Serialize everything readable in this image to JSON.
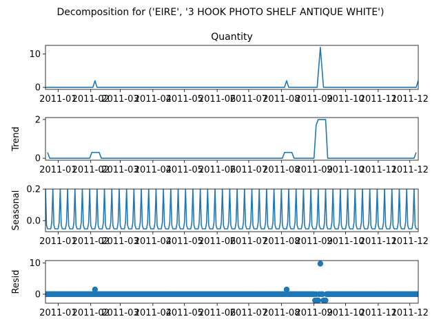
{
  "figure": {
    "suptitle": "Decomposition for ('EIRE', '3 HOOK PHOTO SHELF ANTIQUE WHITE')",
    "colors": {
      "series": "#1f77b4",
      "axes": "#000000",
      "background": "#ffffff"
    }
  },
  "chart_data": [
    {
      "type": "line",
      "title": "Quantity",
      "ylabel": "",
      "x_range": [
        "2010-12-20",
        "2011-12-09"
      ],
      "ylim": [
        -0.6,
        12.6
      ],
      "y_ticks": [
        0,
        10
      ],
      "y_tick_labels": [
        "0",
        "10"
      ],
      "x_tick_labels": [
        "2011-01",
        "2011-02",
        "2011-03",
        "2011-04",
        "2011-05",
        "2011-06",
        "2011-07",
        "2011-08",
        "2011-09",
        "2011-10",
        "2011-11",
        "2011-12"
      ],
      "x": [
        "2010-12-20",
        "2011-02-03",
        "2011-02-05",
        "2011-02-07",
        "2011-08-04",
        "2011-08-06",
        "2011-08-08",
        "2011-09-04",
        "2011-09-07",
        "2011-09-10",
        "2011-12-07",
        "2011-12-09"
      ],
      "values": [
        0,
        0,
        2,
        0,
        0,
        2,
        0,
        0,
        12,
        0,
        0,
        2
      ]
    },
    {
      "type": "line",
      "title": "",
      "ylabel": "Trend",
      "x_range": [
        "2010-12-20",
        "2011-12-09"
      ],
      "ylim": [
        -0.1,
        2.1
      ],
      "y_ticks": [
        0,
        2
      ],
      "y_tick_labels": [
        "0",
        "2"
      ],
      "x_tick_labels": [
        "2011-01",
        "2011-02",
        "2011-03",
        "2011-04",
        "2011-05",
        "2011-06",
        "2011-07",
        "2011-08",
        "2011-09",
        "2011-10",
        "2011-11",
        "2011-12"
      ],
      "x": [
        "2010-12-22",
        "2010-12-24",
        "2011-01-31",
        "2011-02-02",
        "2011-02-09",
        "2011-02-11",
        "2011-08-02",
        "2011-08-04",
        "2011-08-11",
        "2011-08-13",
        "2011-09-01",
        "2011-09-03",
        "2011-09-05",
        "2011-09-12",
        "2011-09-14",
        "2011-12-05",
        "2011-12-07"
      ],
      "values": [
        0.3,
        0,
        0,
        0.3,
        0.3,
        0,
        0,
        0.3,
        0.3,
        0,
        0,
        1.7,
        2,
        2,
        0,
        0,
        0.3
      ]
    },
    {
      "type": "line",
      "title": "",
      "ylabel": "Seasonal",
      "x_range": [
        "2010-12-20",
        "2011-12-09"
      ],
      "ylim": [
        -0.07,
        0.2
      ],
      "y_ticks": [
        0.0,
        0.2
      ],
      "y_tick_labels": [
        "0.0",
        "0.2"
      ],
      "x_tick_labels": [
        "2011-01",
        "2011-02",
        "2011-03",
        "2011-04",
        "2011-05",
        "2011-06",
        "2011-07",
        "2011-08",
        "2011-09",
        "2011-10",
        "2011-11",
        "2011-12"
      ],
      "period_days": 7,
      "pattern": [
        0.2,
        -0.03,
        -0.052,
        -0.052,
        -0.052,
        -0.052,
        -0.012
      ],
      "start": "2010-12-20",
      "end": "2011-12-09"
    },
    {
      "type": "scatter",
      "title": "",
      "ylabel": "Resid",
      "x_range": [
        "2010-12-20",
        "2011-12-09"
      ],
      "ylim": [
        -2.9,
        10.8
      ],
      "y_ticks": [
        0,
        10
      ],
      "y_tick_labels": [
        "0",
        "10"
      ],
      "x_tick_labels": [
        "2011-01",
        "2011-02",
        "2011-03",
        "2011-04",
        "2011-05",
        "2011-06",
        "2011-07",
        "2011-08",
        "2011-09",
        "2011-10",
        "2011-11",
        "2011-12"
      ],
      "baseline_value": 0,
      "baseline_step_days": 1,
      "outliers": [
        {
          "x": "2011-02-05",
          "y": 1.5
        },
        {
          "x": "2011-08-06",
          "y": 1.5
        },
        {
          "x": "2011-09-07",
          "y": 9.8
        },
        {
          "x": "2011-09-02",
          "y": -2.0
        },
        {
          "x": "2011-09-04",
          "y": -2.0
        },
        {
          "x": "2011-09-05",
          "y": -2.0
        },
        {
          "x": "2011-09-10",
          "y": -2.0
        },
        {
          "x": "2011-09-11",
          "y": -2.0
        },
        {
          "x": "2011-09-12",
          "y": -2.0
        }
      ]
    }
  ]
}
